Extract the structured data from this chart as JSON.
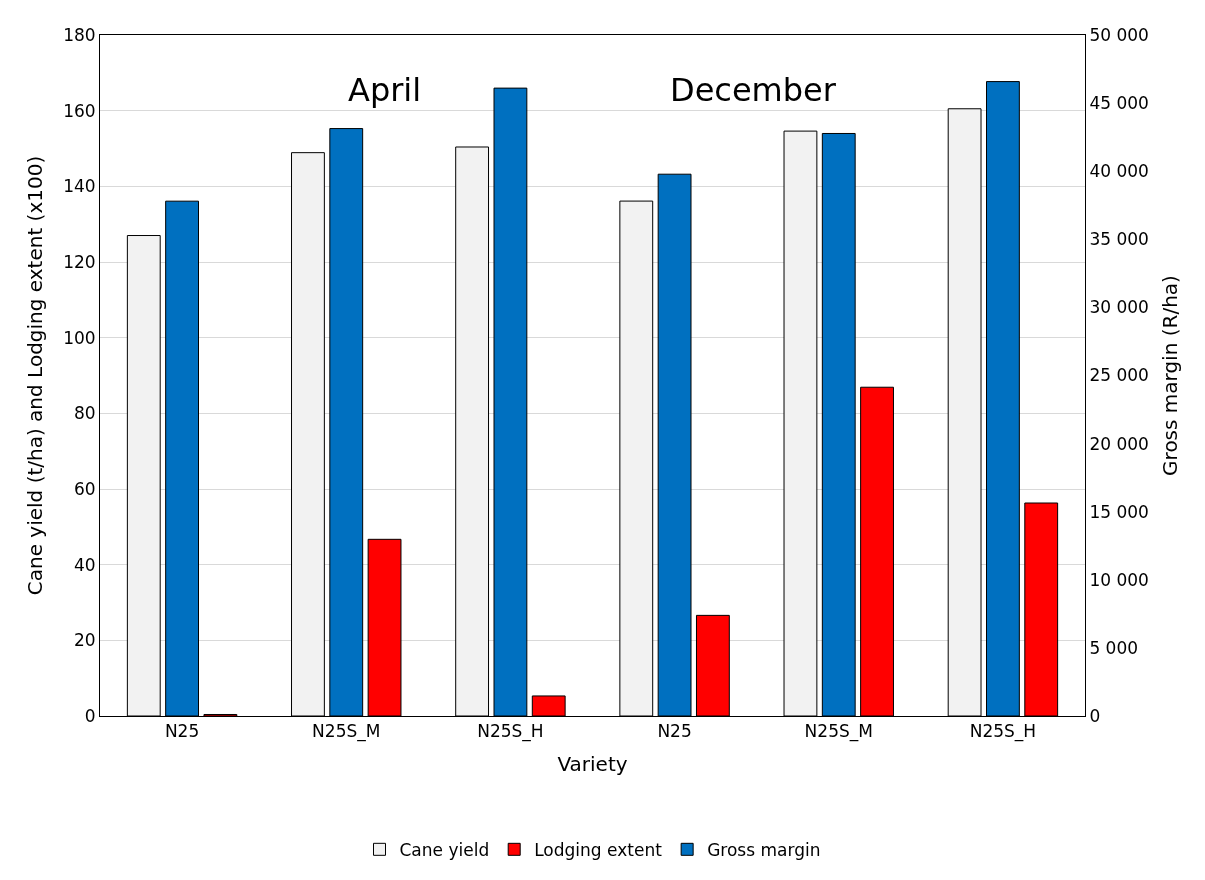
{
  "chart_data": {
    "type": "bar",
    "categories": [
      "N25",
      "N25S_M",
      "N25S_H",
      "N25",
      "N25S_M",
      "N25S_H"
    ],
    "xlabel": "Variety",
    "ylabel": "Cane yield (t/ha) and Lodging extent (x100)",
    "y2label": "Gross margin (R/ha)",
    "series": [
      {
        "name": "Cane yield",
        "color": "#f2f2f2",
        "values": [
          127,
          148.9,
          150.4,
          136.1,
          154.6,
          160.5
        ]
      },
      {
        "name": "Lodging extent",
        "color": "#ff0000",
        "values": [
          0.4,
          46.7,
          5.3,
          26.6,
          86.9,
          56.3
        ]
      },
      {
        "name": "Gross margin",
        "color": "#0070c0",
        "axis": "y2",
        "values": [
          37800,
          43130,
          46100,
          39780,
          42770,
          46580
        ]
      }
    ],
    "ylim": [
      0,
      180
    ],
    "yticks": [
      0,
      20,
      40,
      60,
      80,
      100,
      120,
      140,
      160,
      180
    ],
    "y2lim": [
      0,
      50000
    ],
    "y2ticks": [
      0,
      {
        "value": 5000,
        "label": "5 000"
      },
      {
        "value": 10000,
        "label": "10 000"
      },
      {
        "value": 15000,
        "label": "15 000"
      },
      {
        "value": 20000,
        "label": "20 000"
      },
      {
        "value": 25000,
        "label": "25 000"
      },
      {
        "value": 30000,
        "label": "30 000"
      },
      {
        "value": 35000,
        "label": "35 000"
      },
      {
        "value": 40000,
        "label": "40 000"
      },
      {
        "value": 45000,
        "label": "45 000"
      },
      {
        "value": 50000,
        "label": "50 000"
      }
    ],
    "annotations": [
      "April",
      "December"
    ],
    "grid": "y",
    "legend": "bottom"
  }
}
